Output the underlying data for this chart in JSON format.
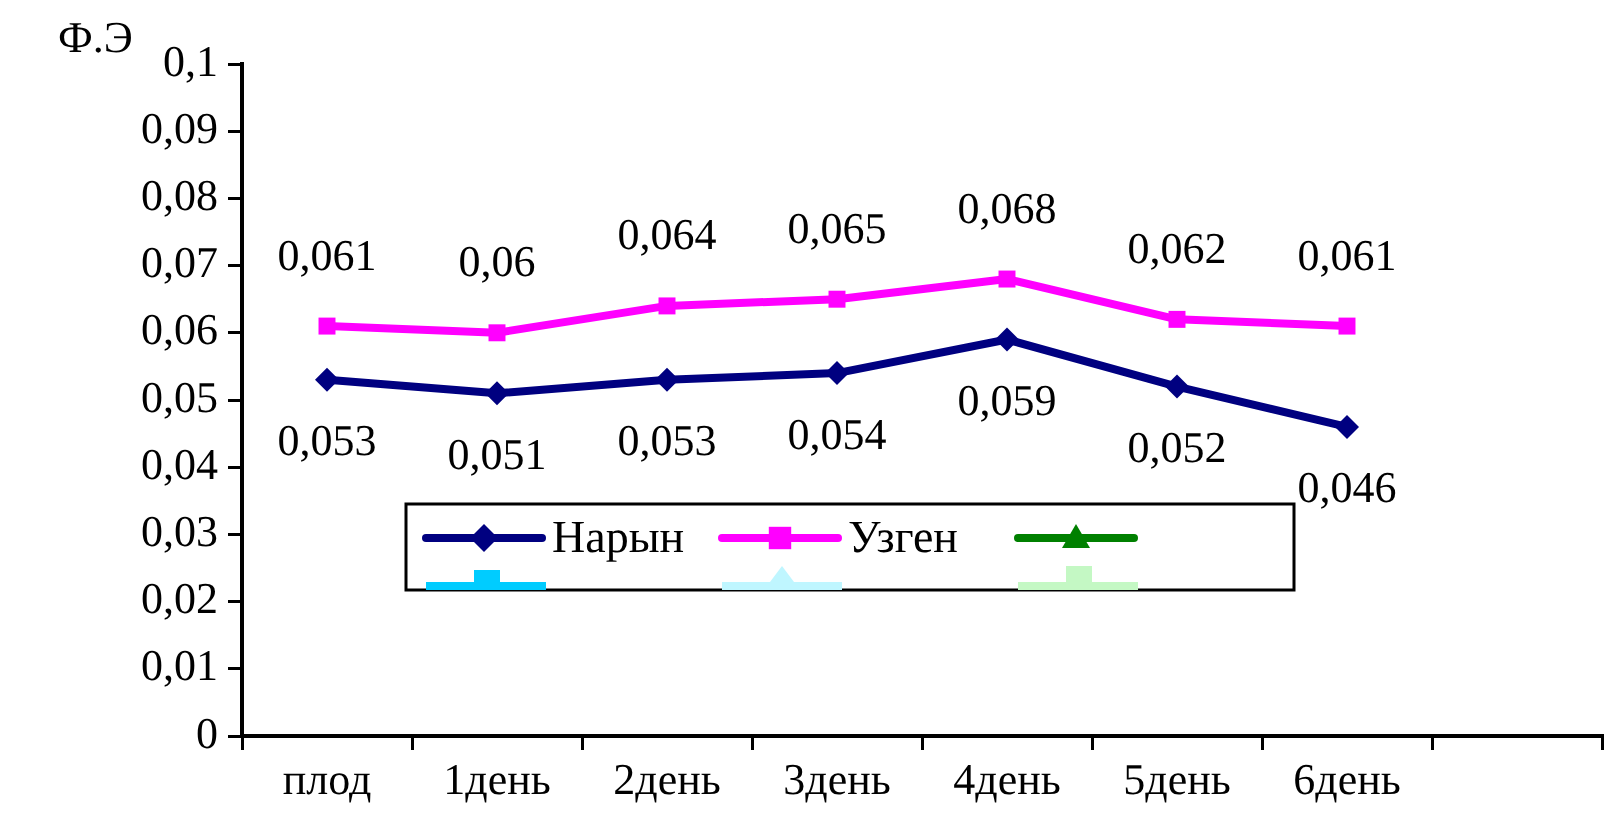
{
  "chart_data": {
    "type": "line",
    "ylabel": "Ф.Э",
    "categories": [
      "плод",
      "1день",
      "2день",
      "3день",
      "4день",
      "5день",
      "6день",
      null
    ],
    "series": [
      {
        "name": "Нарын",
        "color": "#000080",
        "marker": "diamond",
        "values": [
          0.053,
          0.051,
          0.053,
          0.054,
          0.059,
          0.052,
          0.046,
          null
        ],
        "value_labels": [
          "0,053",
          "0,051",
          "0,053",
          "0,054",
          "0,059",
          "0,052",
          "0,046",
          null
        ]
      },
      {
        "name": "Узген",
        "color": "#ff00ff",
        "marker": "square",
        "values": [
          0.061,
          0.06,
          0.064,
          0.065,
          0.068,
          0.062,
          0.061,
          null
        ],
        "value_labels": [
          "0,061",
          "0,06",
          "0,064",
          "0,065",
          "0,068",
          "0,062",
          "0,061",
          null
        ]
      }
    ],
    "ylim": [
      0,
      0.1
    ],
    "yticks": [
      0,
      {
        "value": 0.01,
        "label": "0,01"
      },
      {
        "value": 0.02,
        "label": "0,02"
      },
      {
        "value": 0.03,
        "label": "0,03"
      },
      {
        "value": 0.04,
        "label": "0,04"
      },
      {
        "value": 0.05,
        "label": "0,05"
      },
      {
        "value": 0.06,
        "label": "0,06"
      },
      {
        "value": 0.07,
        "label": "0,07"
      },
      {
        "value": 0.08,
        "label": "0,08"
      },
      {
        "value": 0.09,
        "label": "0,09"
      },
      {
        "value": 0.1,
        "label": "0,1"
      }
    ],
    "grid": false,
    "legend": "bottom"
  }
}
